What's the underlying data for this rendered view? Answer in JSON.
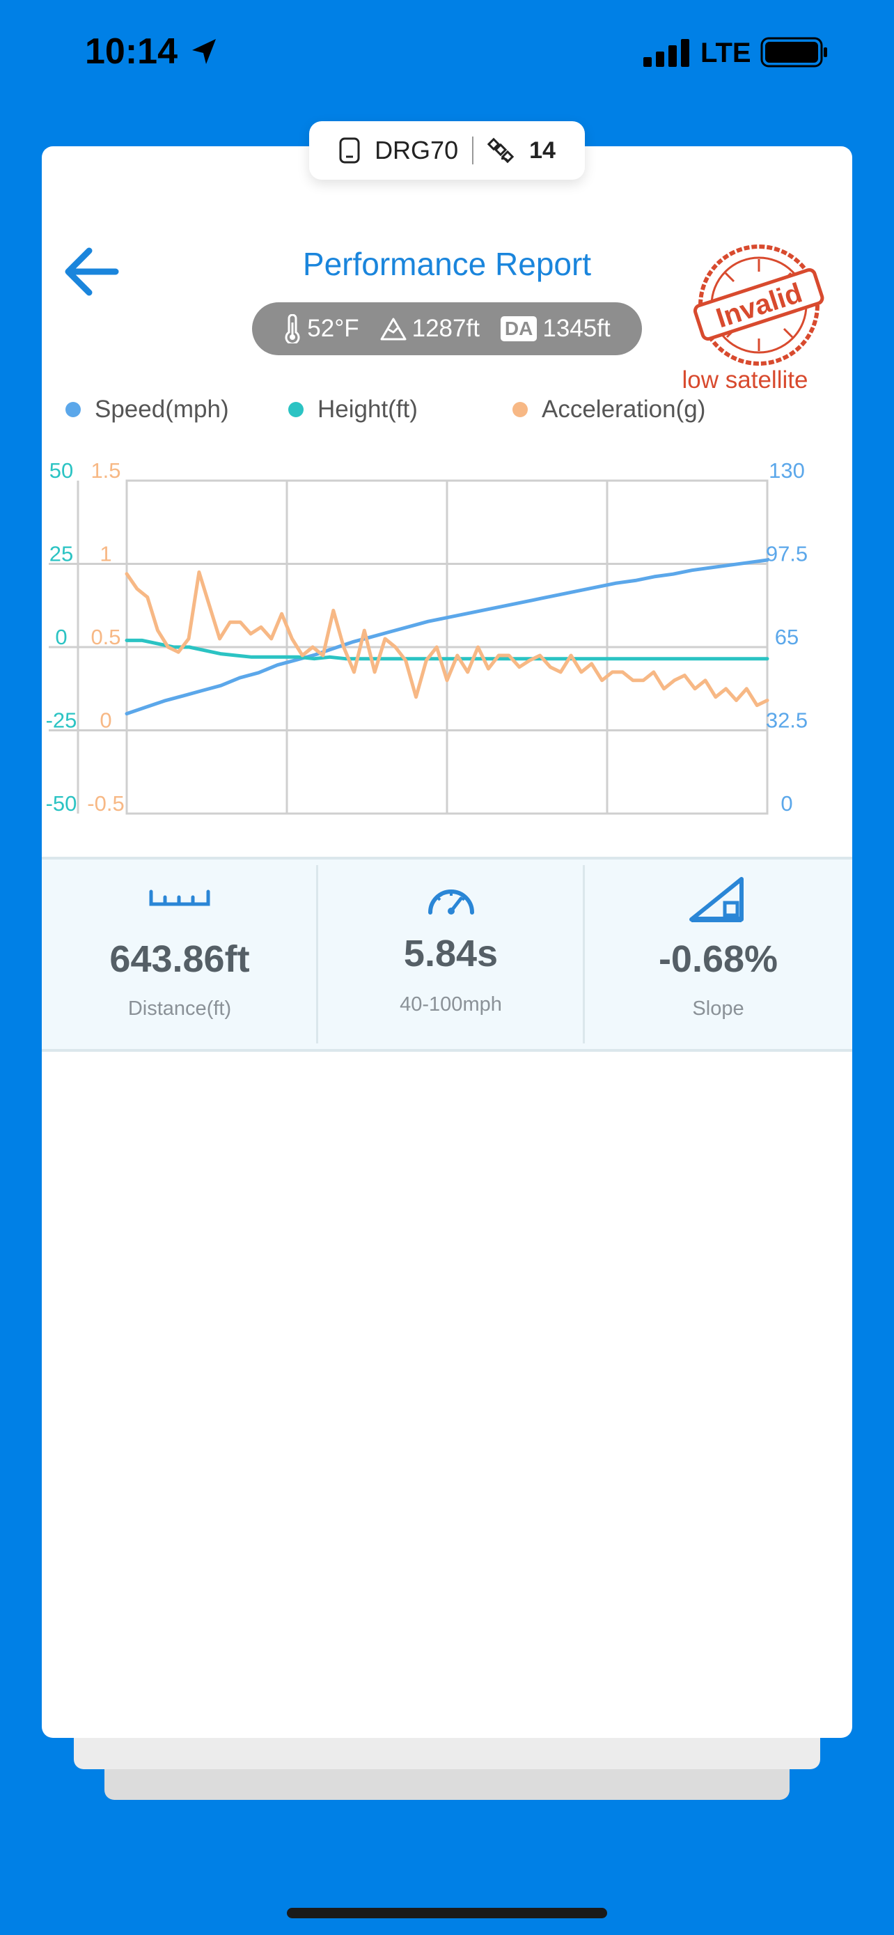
{
  "status": {
    "time": "10:14",
    "network": "LTE"
  },
  "device": {
    "name": "DRG70",
    "satellites": "14"
  },
  "header": {
    "title": "Performance Report",
    "stamp_text": "Invalid",
    "warning": "low satellite"
  },
  "conditions": {
    "temperature": "52°F",
    "altitude": "1287ft",
    "da_label": "DA",
    "density_altitude": "1345ft"
  },
  "legend": [
    {
      "label": "Speed(mph)",
      "color": "#5ba7ea"
    },
    {
      "label": "Height(ft)",
      "color": "#2bc3c3"
    },
    {
      "label": "Acceleration(g)",
      "color": "#f7b885"
    }
  ],
  "chart_data": {
    "type": "line",
    "x_divisions": 4,
    "axes": {
      "height": {
        "ticks": [
          "50",
          "25",
          "0",
          "-25",
          "-50"
        ],
        "range": [
          -50,
          50
        ],
        "color": "#2bc3c3"
      },
      "acceleration": {
        "ticks": [
          "1.5",
          "1",
          "0.5",
          "0",
          "-0.5"
        ],
        "range": [
          -0.5,
          1.5
        ],
        "color": "#f7b885"
      },
      "speed": {
        "ticks": [
          "130",
          "97.5",
          "65",
          "32.5",
          "0"
        ],
        "range": [
          0,
          130
        ],
        "color": "#5ba7ea"
      }
    },
    "series": [
      {
        "name": "Speed(mph)",
        "axis": "speed",
        "color": "#5ba7ea",
        "values": [
          39,
          41.5,
          44,
          46,
          48,
          50,
          53,
          55,
          58,
          60,
          62,
          64.5,
          67,
          69,
          71,
          73,
          75,
          76.5,
          78,
          79.5,
          81,
          82.5,
          84,
          85.5,
          87,
          88.5,
          90,
          91,
          92.5,
          93.5,
          95,
          96,
          97,
          98,
          99
        ]
      },
      {
        "name": "Height(ft)",
        "axis": "height",
        "color": "#2bc3c3",
        "values": [
          2,
          2,
          1,
          0,
          0,
          -1,
          -2,
          -2.5,
          -3,
          -3,
          -3,
          -3,
          -3.5,
          -3,
          -3.5,
          -3.5,
          -3.5,
          -3.5,
          -3.5,
          -3.5,
          -3.5,
          -3.5,
          -3.5,
          -3.5,
          -3.5,
          -3.5,
          -3.5,
          -3.5,
          -3.5,
          -3.5,
          -3.5,
          -3.5,
          -3.5,
          -3.5,
          -3.5,
          -3.5,
          -3.5,
          -3.5,
          -3.5,
          -3.5,
          -3.5,
          -3.5
        ]
      },
      {
        "name": "Acceleration(g)",
        "axis": "acceleration",
        "color": "#f7b885",
        "values": [
          0.94,
          0.85,
          0.8,
          0.6,
          0.5,
          0.47,
          0.55,
          0.95,
          0.75,
          0.55,
          0.65,
          0.65,
          0.58,
          0.62,
          0.55,
          0.7,
          0.55,
          0.45,
          0.5,
          0.45,
          0.72,
          0.5,
          0.35,
          0.6,
          0.35,
          0.55,
          0.5,
          0.42,
          0.2,
          0.42,
          0.5,
          0.3,
          0.45,
          0.35,
          0.5,
          0.37,
          0.45,
          0.45,
          0.38,
          0.42,
          0.45,
          0.38,
          0.35,
          0.45,
          0.35,
          0.4,
          0.3,
          0.35,
          0.35,
          0.3,
          0.3,
          0.35,
          0.25,
          0.3,
          0.33,
          0.25,
          0.3,
          0.2,
          0.25,
          0.18,
          0.25,
          0.15,
          0.18
        ]
      }
    ]
  },
  "stats": [
    {
      "value": "643.86ft",
      "label": "Distance(ft)",
      "icon": "ruler-icon"
    },
    {
      "value": "5.84s",
      "label": "40-100mph",
      "icon": "speedometer-icon"
    },
    {
      "value": "-0.68%",
      "label": "Slope",
      "icon": "slope-icon"
    }
  ]
}
